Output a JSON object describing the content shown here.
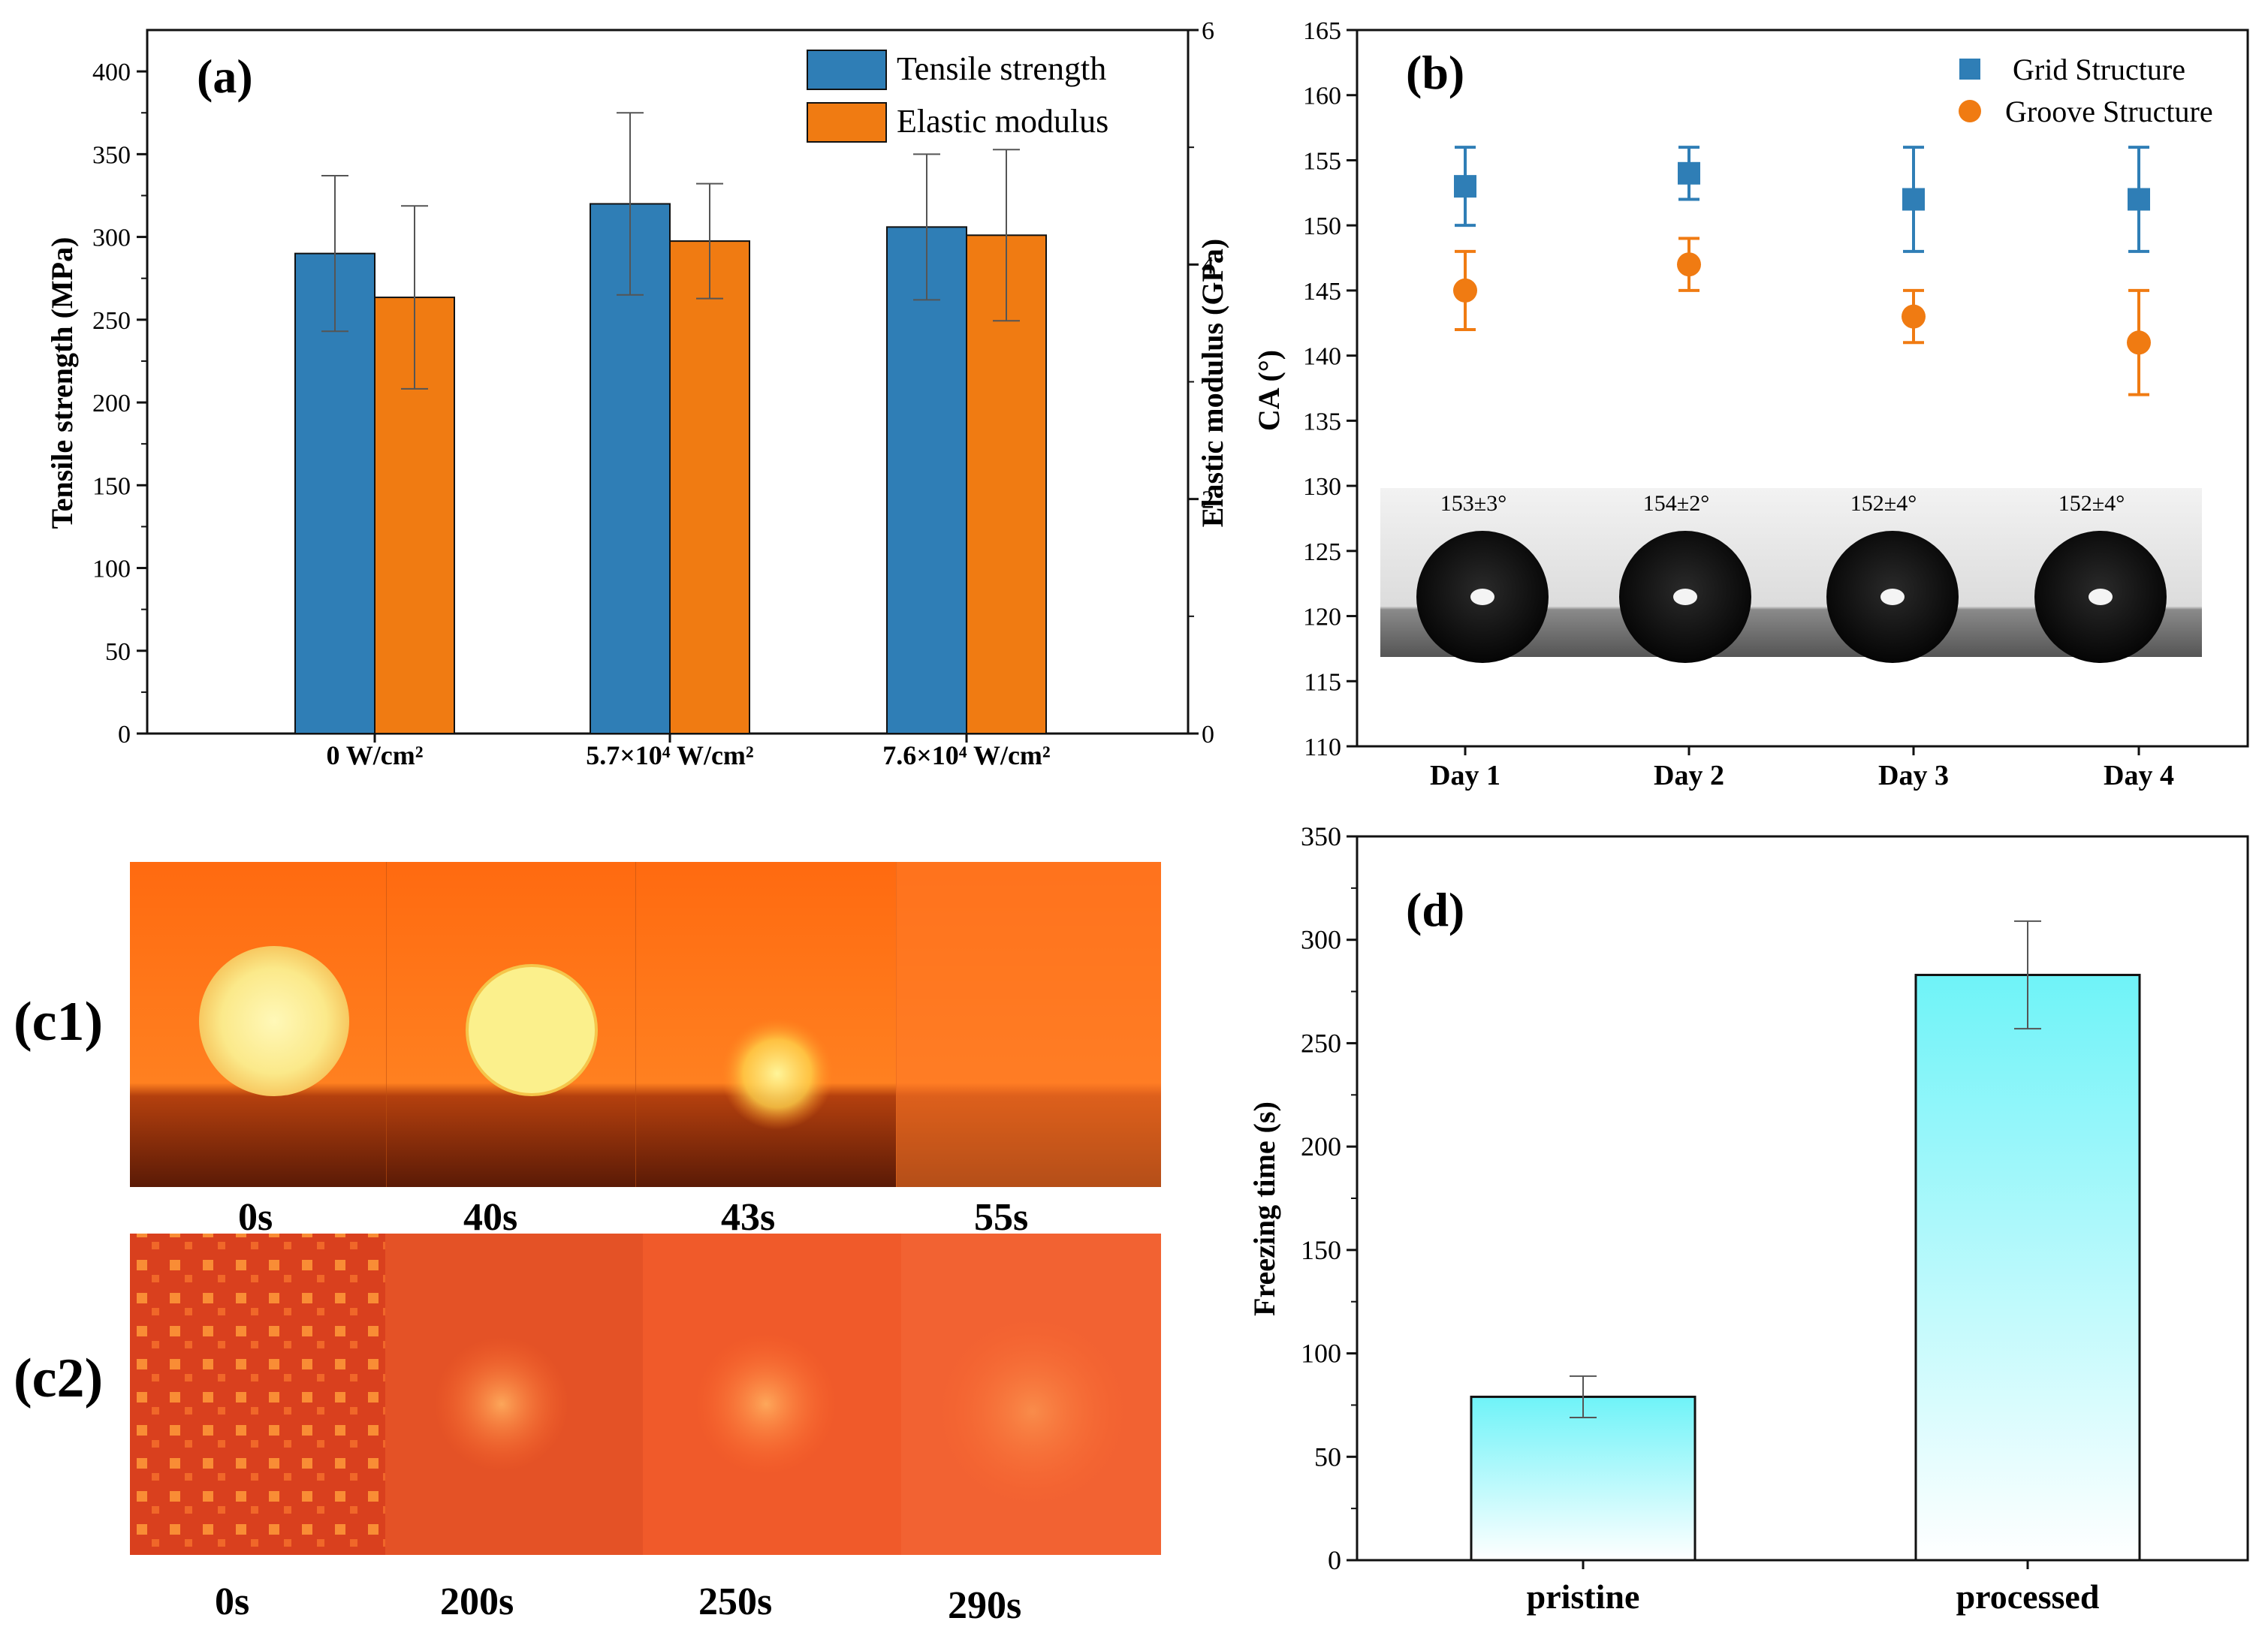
{
  "colors": {
    "blue": "#2f7eb6",
    "orange": "#f07b12",
    "cyan_top": "#6ff3f8",
    "axis": "#111111"
  },
  "chart_data": [
    {
      "id": "a",
      "panel_label": "(a)",
      "type": "bar",
      "categories": [
        "0 W/cm²",
        "5.7×10⁴ W/cm²",
        "7.6×10⁴ W/cm²"
      ],
      "series": [
        {
          "name": "Tensile strength",
          "axis": "left",
          "values": [
            290,
            320,
            306
          ],
          "errors": [
            47,
            55,
            44
          ]
        },
        {
          "name": "Elastic modulus",
          "axis": "right",
          "values": [
            3.72,
            4.2,
            4.25
          ],
          "errors": [
            0.78,
            0.49,
            0.73
          ]
        }
      ],
      "ylabel": "Tensile strength (MPa)",
      "ylabel_right": "Elastic modulus (GPa)",
      "ylim": [
        0,
        425
      ],
      "ylim_right": [
        0,
        6
      ],
      "yticks": [
        "0",
        "50",
        "100",
        "150",
        "200",
        "250",
        "300",
        "350",
        "400"
      ],
      "yticks_right": [
        "0",
        "2",
        "4",
        "6"
      ],
      "legend": "top-right"
    },
    {
      "id": "b",
      "panel_label": "(b)",
      "type": "scatter",
      "categories": [
        "Day 1",
        "Day 2",
        "Day 3",
        "Day 4"
      ],
      "series": [
        {
          "name": "Grid Structure",
          "marker": "square",
          "values": [
            153,
            154,
            152,
            152
          ],
          "errors": [
            3,
            2,
            4,
            4
          ]
        },
        {
          "name": "Groove Structure",
          "marker": "circle",
          "values": [
            145,
            147,
            143,
            141
          ],
          "errors": [
            3,
            2,
            2,
            4
          ]
        }
      ],
      "ylabel": "CA (°)",
      "ylim": [
        110,
        165
      ],
      "yticks": [
        "110",
        "115",
        "120",
        "125",
        "130",
        "135",
        "140",
        "145",
        "150",
        "155",
        "160",
        "165"
      ],
      "legend": "top-right",
      "inset_labels": [
        "153±3°",
        "154±2°",
        "152±4°",
        "152±4°"
      ]
    },
    {
      "id": "d",
      "panel_label": "(d)",
      "type": "bar",
      "categories": [
        "pristine",
        "processed"
      ],
      "values": [
        79,
        283
      ],
      "errors": [
        10,
        26
      ],
      "ylabel": "Freezing time (s)",
      "ylim": [
        0,
        350
      ],
      "yticks": [
        "0",
        "50",
        "100",
        "150",
        "200",
        "250",
        "300",
        "350"
      ]
    }
  ],
  "photos": {
    "c1_label": "(c1)",
    "c1_times": [
      "0s",
      "40s",
      "43s",
      "55s"
    ],
    "c2_label": "(c2)",
    "c2_times": [
      "0s",
      "200s",
      "250s",
      "290s"
    ]
  }
}
